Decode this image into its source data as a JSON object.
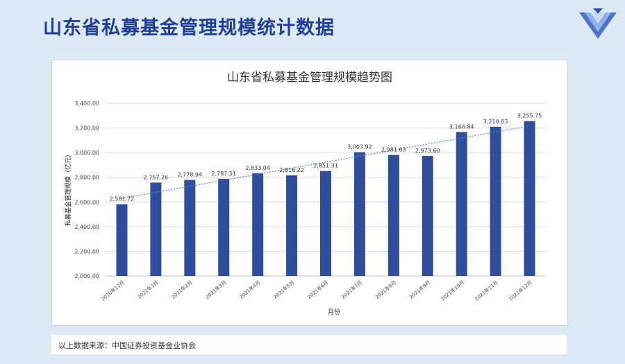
{
  "page": {
    "title": "山东省私募基金管理规模统计数据",
    "source": "以上数据来源：中国证券投资基金业协会"
  },
  "colors": {
    "bar": "#2f4f9e",
    "title": "#1f3f99",
    "trend": "#5a7bd0"
  },
  "icons": {
    "logo": "triangle-logo-icon"
  },
  "chart_data": {
    "type": "bar",
    "title": "山东省私募基金管理规模趋势图",
    "xlabel": "月份",
    "ylabel": "私募基金管理规模（亿元）",
    "ylim": [
      2000,
      3400
    ],
    "yticks": [
      "2,000.00",
      "2,200.00",
      "2,400.00",
      "2,600.00",
      "2,800.00",
      "3,000.00",
      "3,200.00",
      "3,400.00"
    ],
    "categories": [
      "2020年12月",
      "2021年1月",
      "2021年2月",
      "2021年3月",
      "2021年4月",
      "2021年5月",
      "2021年6月",
      "2021年7月",
      "2021年8月",
      "2021年9月",
      "2021年10月",
      "2021年11月",
      "2021年12月"
    ],
    "values": [
      2581.72,
      2757.26,
      2778.94,
      2787.51,
      2833.04,
      2816.22,
      2851.31,
      3003.92,
      2981.63,
      2973.6,
      3166.84,
      3210.03,
      3255.75
    ],
    "value_labels": [
      "2,581.72",
      "2,757.26",
      "2,778.94",
      "2,787.51",
      "2,833.04",
      "2,816.22",
      "2,851.31",
      "3,003.92",
      "2,981.63",
      "2,973.60",
      "3,166.84",
      "3,210.03",
      "3,255.75"
    ],
    "trendline": true,
    "grid": true
  }
}
